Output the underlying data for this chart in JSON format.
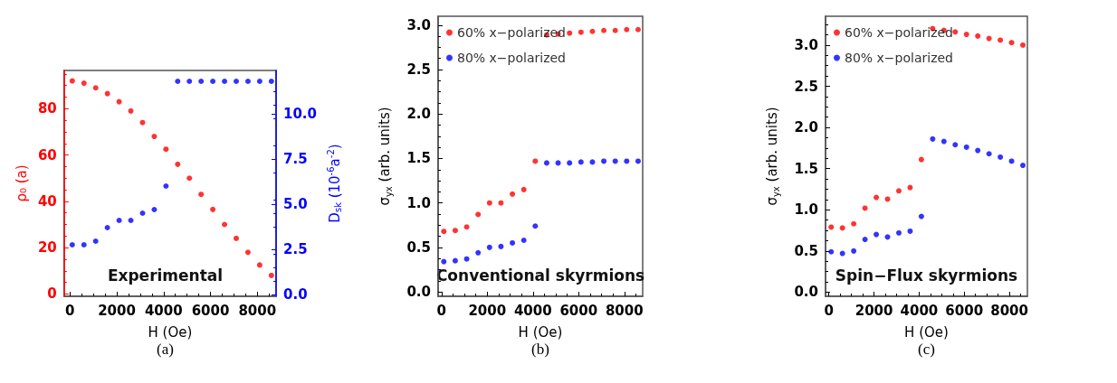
{
  "chart_data": [
    {
      "type": "scatter",
      "xlabel": "H (Oe)",
      "ylabel": "ρ₀ (a)",
      "y2label": "D$_{sk}$ (10$^{-6}$a$^{-2}$)",
      "annotations": [
        "Experimental",
        "(a)"
      ],
      "x": [
        100,
        600,
        1100,
        1600,
        2100,
        2600,
        3100,
        3600,
        4100,
        4600,
        5100,
        5600,
        6100,
        6600,
        7100,
        7600,
        8100,
        8600
      ],
      "xlim": [
        -250,
        8800
      ],
      "xticks": [
        0,
        2000,
        4000,
        6000,
        8000
      ],
      "ylim": [
        -1,
        96.5
      ],
      "yticks": [
        0,
        20,
        40,
        60,
        80
      ],
      "y2lim": [
        -0.1,
        12.4
      ],
      "y2ticks": [
        {
          "value": 0,
          "label": "0.0"
        },
        2.5,
        {
          "value": 5,
          "label": "5.0"
        },
        7.5,
        {
          "value": 10,
          "label": "10.0"
        }
      ],
      "series": [
        {
          "color": "#ff0000",
          "values": [
            92,
            91,
            89,
            86.5,
            83,
            79,
            74,
            68,
            62.5,
            56,
            50,
            43,
            36.5,
            30,
            24,
            18,
            12.5,
            8
          ]
        },
        {
          "color": "#0000ff",
          "axis": "y2",
          "values": [
            2.75,
            2.75,
            2.95,
            3.7,
            4.1,
            4.1,
            4.5,
            4.7,
            6.0,
            11.8,
            11.8,
            11.8,
            11.8,
            11.8,
            11.8,
            11.8,
            11.8,
            11.8
          ]
        }
      ],
      "grid": false,
      "marker": "circle",
      "legend": false
    },
    {
      "type": "scatter",
      "xlabel": "H (Oe)",
      "ylabel": "σ$_{yx}$ (arb. units)",
      "annotations": [
        "Conventional skyrmions",
        "(b)"
      ],
      "x": [
        100,
        600,
        1100,
        1600,
        2100,
        2600,
        3100,
        3600,
        4100,
        4600,
        5100,
        5600,
        6100,
        6600,
        7100,
        7600,
        8100,
        8600
      ],
      "xlim": [
        -150,
        8800
      ],
      "xticks": [
        0,
        2000,
        4000,
        6000,
        8000
      ],
      "ylim": [
        -0.05,
        3.1
      ],
      "yticks": [
        {
          "value": 0,
          "label": "0.0"
        },
        0.5,
        {
          "value": 1,
          "label": "1.0"
        },
        1.5,
        {
          "value": 2,
          "label": "2.0"
        },
        2.5,
        {
          "value": 3,
          "label": "3.0"
        }
      ],
      "series": [
        {
          "name": "60% x−polarized",
          "color": "#ff0000",
          "values": [
            0.68,
            0.69,
            0.73,
            0.87,
            1.0,
            1.0,
            1.1,
            1.15,
            1.47,
            2.89,
            2.9,
            2.91,
            2.92,
            2.93,
            2.94,
            2.94,
            2.95,
            2.95
          ]
        },
        {
          "name": "80% x−polarized",
          "color": "#0000ff",
          "values": [
            0.34,
            0.35,
            0.37,
            0.44,
            0.5,
            0.51,
            0.55,
            0.58,
            0.74,
            1.45,
            1.45,
            1.45,
            1.46,
            1.46,
            1.47,
            1.47,
            1.47,
            1.47
          ]
        }
      ],
      "grid": false,
      "marker": "circle",
      "legend": "top left"
    },
    {
      "type": "scatter",
      "xlabel": "H (Oe)",
      "ylabel": "σ$_{yx}$ (arb. units)",
      "annotations": [
        "Spin−Flux skyrmions",
        "(c)"
      ],
      "x": [
        100,
        600,
        1100,
        1600,
        2100,
        2600,
        3100,
        3600,
        4100,
        4600,
        5100,
        5600,
        6100,
        6600,
        7100,
        7600,
        8100,
        8600
      ],
      "xlim": [
        -150,
        8800
      ],
      "xticks": [
        0,
        2000,
        4000,
        6000,
        8000
      ],
      "ylim": [
        -0.05,
        3.35
      ],
      "yticks": [
        {
          "value": 0,
          "label": "0.0"
        },
        0.5,
        {
          "value": 1,
          "label": "1.0"
        },
        1.5,
        {
          "value": 2,
          "label": "2.0"
        },
        2.5,
        {
          "value": 3,
          "label": "3.0"
        }
      ],
      "series": [
        {
          "name": "60% x−polarized",
          "color": "#ff0000",
          "values": [
            0.79,
            0.78,
            0.83,
            1.02,
            1.15,
            1.13,
            1.23,
            1.27,
            1.61,
            3.2,
            3.18,
            3.16,
            3.13,
            3.11,
            3.08,
            3.06,
            3.03,
            3.0
          ]
        },
        {
          "name": "80% x−polarized",
          "color": "#0000ff",
          "values": [
            0.49,
            0.47,
            0.5,
            0.64,
            0.7,
            0.67,
            0.72,
            0.74,
            0.92,
            1.86,
            1.83,
            1.79,
            1.76,
            1.72,
            1.68,
            1.64,
            1.59,
            1.54
          ]
        }
      ],
      "grid": false,
      "marker": "circle",
      "legend": "top left"
    }
  ]
}
